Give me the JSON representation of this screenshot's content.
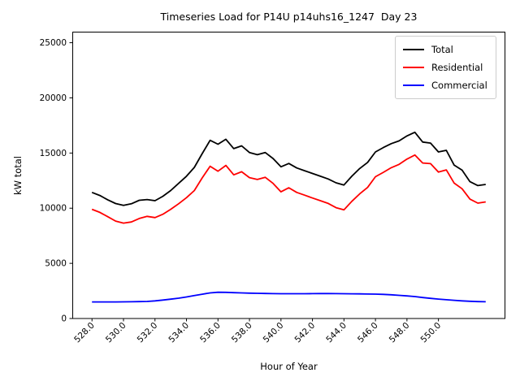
{
  "chart_data": {
    "type": "line",
    "title": "Timeseries Load for P14U p14uhs16_1247  Day 23",
    "xlabel": "Hour of Year",
    "ylabel": "kW total",
    "grid": false,
    "legend_position": "upper right",
    "xlim": [
      526.75,
      554.25
    ],
    "ylim": [
      0,
      26000
    ],
    "xticks": [
      528,
      530,
      532,
      534,
      536,
      538,
      540,
      542,
      544,
      546,
      548,
      550
    ],
    "xtick_labels": [
      "528.0",
      "530.0",
      "532.0",
      "534.0",
      "536.0",
      "538.0",
      "540.0",
      "542.0",
      "544.0",
      "546.0",
      "548.0",
      "550.0"
    ],
    "yticks": [
      0,
      5000,
      10000,
      15000,
      20000,
      25000
    ],
    "ytick_labels": [
      "0",
      "5000",
      "10000",
      "15000",
      "20000",
      "25000"
    ],
    "x": [
      528.0,
      528.5,
      529.0,
      529.5,
      530.0,
      530.5,
      531.0,
      531.5,
      532.0,
      532.5,
      533.0,
      533.5,
      534.0,
      534.5,
      535.0,
      535.5,
      536.0,
      536.5,
      537.0,
      537.5,
      538.0,
      538.5,
      539.0,
      539.5,
      540.0,
      540.5,
      541.0,
      541.5,
      542.0,
      542.5,
      543.0,
      543.5,
      544.0,
      544.5,
      545.0,
      545.5,
      546.0,
      546.5,
      547.0,
      547.5,
      548.0,
      548.5,
      549.0,
      549.5,
      550.0,
      550.5,
      551.0,
      551.5,
      552.0,
      552.5,
      553.0
    ],
    "series": [
      {
        "name": "Total",
        "color": "#000000",
        "values": [
          11430,
          11150,
          10760,
          10420,
          10250,
          10400,
          10720,
          10780,
          10680,
          11080,
          11600,
          12250,
          12900,
          13700,
          14950,
          16150,
          15800,
          16250,
          15400,
          15650,
          15050,
          14850,
          15050,
          14500,
          13750,
          14050,
          13650,
          13400,
          13150,
          12900,
          12650,
          12300,
          12100,
          12900,
          13600,
          14150,
          15100,
          15500,
          15850,
          16100,
          16550,
          16880,
          16000,
          15900,
          15100,
          15250,
          13900,
          13450,
          12400,
          12050,
          12150
        ]
      },
      {
        "name": "Residential",
        "color": "#ff0000",
        "values": [
          9900,
          9620,
          9230,
          8830,
          8650,
          8750,
          9070,
          9260,
          9150,
          9450,
          9900,
          10400,
          10950,
          11600,
          12750,
          13800,
          13350,
          13880,
          13020,
          13300,
          12770,
          12600,
          12800,
          12250,
          11480,
          11850,
          11430,
          11180,
          10920,
          10680,
          10430,
          10050,
          9850,
          10620,
          11300,
          11880,
          12850,
          13250,
          13670,
          13970,
          14450,
          14820,
          14100,
          14040,
          13270,
          13470,
          12270,
          11760,
          10820,
          10460,
          10570
        ]
      },
      {
        "name": "Commercial",
        "color": "#0000ff",
        "values": [
          1500,
          1500,
          1505,
          1505,
          1510,
          1520,
          1530,
          1550,
          1600,
          1670,
          1750,
          1840,
          1950,
          2080,
          2200,
          2320,
          2380,
          2370,
          2340,
          2320,
          2300,
          2280,
          2265,
          2255,
          2250,
          2245,
          2245,
          2250,
          2255,
          2260,
          2260,
          2255,
          2250,
          2240,
          2230,
          2220,
          2210,
          2190,
          2150,
          2100,
          2050,
          1990,
          1900,
          1830,
          1760,
          1700,
          1650,
          1600,
          1560,
          1535,
          1520
        ]
      }
    ]
  }
}
